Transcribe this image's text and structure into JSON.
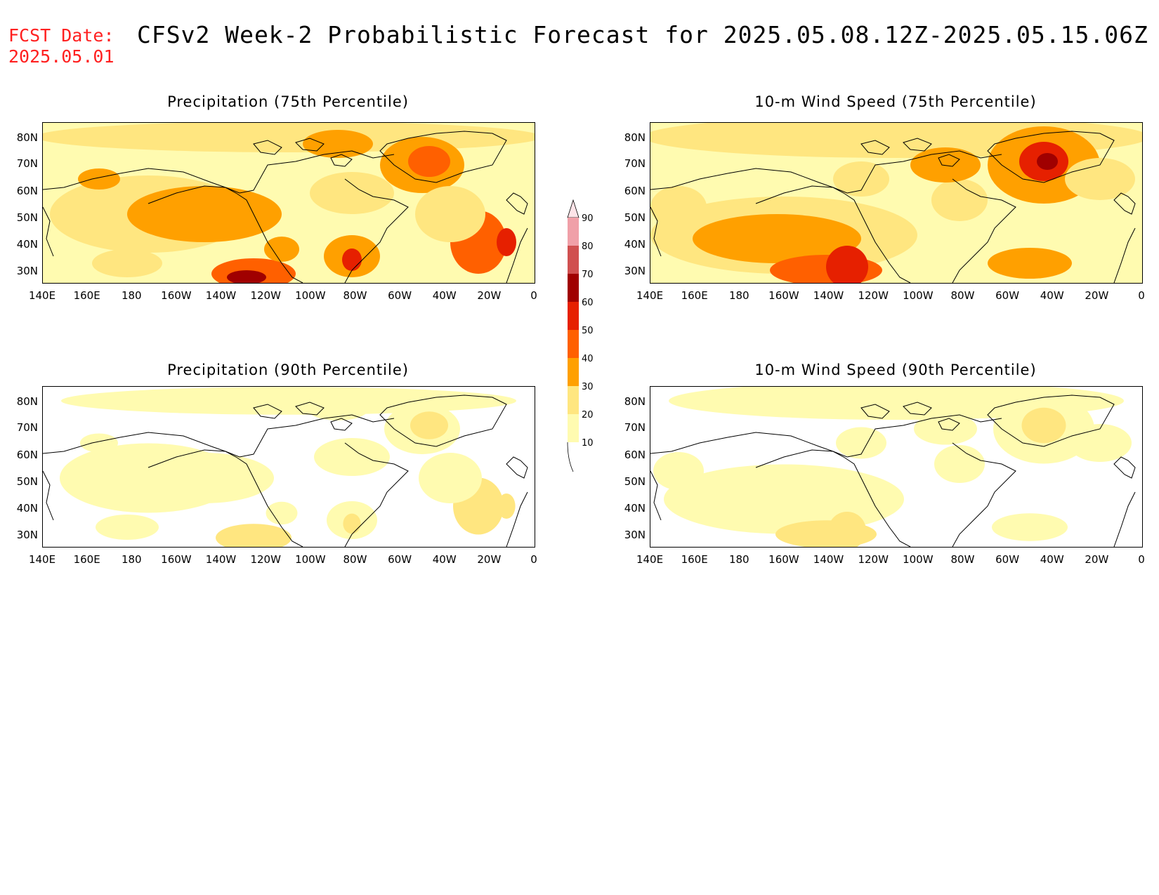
{
  "header": {
    "fcst_label": "FCST Date:",
    "fcst_date": "2025.05.01",
    "title": "CFSv2 Week-2 Probabilistic Forecast for 2025.05.08.12Z-2025.05.15.06Z"
  },
  "axes": {
    "x_ticks": [
      "140E",
      "160E",
      "180",
      "160W",
      "140W",
      "120W",
      "100W",
      "80W",
      "60W",
      "40W",
      "20W",
      "0"
    ],
    "y_ticks": [
      "80N",
      "70N",
      "60N",
      "50N",
      "40N",
      "30N"
    ]
  },
  "colorbar": {
    "levels": [
      "10",
      "20",
      "30",
      "40",
      "50",
      "60",
      "70",
      "80",
      "90"
    ],
    "colors": [
      "#fffbb0",
      "#ffe680",
      "#ffa000",
      "#ff6000",
      "#e62000",
      "#a00000",
      "#d05050",
      "#f0a0a8",
      "#fde4e8"
    ]
  },
  "panels": [
    {
      "title": "Precipitation (75th Percentile)",
      "intensity": "high",
      "variable": "precip"
    },
    {
      "title": "10-m Wind Speed (75th Percentile)",
      "intensity": "high",
      "variable": "wind"
    },
    {
      "title": "Precipitation (90th Percentile)",
      "intensity": "low",
      "variable": "precip"
    },
    {
      "title": "10-m Wind Speed (90th Percentile)",
      "intensity": "low",
      "variable": "wind"
    }
  ]
}
